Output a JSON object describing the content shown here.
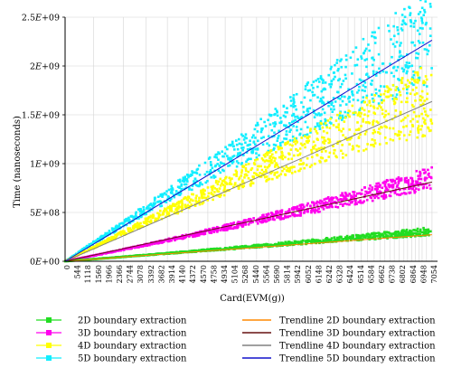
{
  "chart_data": {
    "type": "scatter",
    "title": "",
    "xlabel": "Card(EVM(g))",
    "ylabel": "Time (nanoseconds)",
    "xlim": [
      0,
      7160
    ],
    "ylim": [
      0,
      2500000000
    ],
    "y_ticks": [
      0,
      500000000,
      1000000000,
      1500000000,
      2000000000,
      2500000000
    ],
    "y_tick_labels": [
      "0E+00",
      "5E+08",
      "1E+09",
      "1.5E+09",
      "2E+09",
      "2.5E+09"
    ],
    "x_ticks": [
      0,
      544,
      1118,
      1560,
      1966,
      2366,
      2744,
      3078,
      3392,
      3682,
      3914,
      4140,
      4372,
      4570,
      4758,
      4934,
      5104,
      5268,
      5440,
      5564,
      5690,
      5814,
      5942,
      6052,
      6148,
      6242,
      6328,
      6424,
      6514,
      6584,
      6662,
      6738,
      6802,
      6864,
      6948,
      7054
    ],
    "grid": true,
    "legend_position": "bottom",
    "series": [
      {
        "name": "2D boundary extraction",
        "kind": "scatter",
        "color": "#22dd22",
        "approx_slope": 42000,
        "approx_curve": 0.08
      },
      {
        "name": "3D boundary extraction",
        "kind": "scatter",
        "color": "#ff00ee",
        "approx_slope": 113000,
        "approx_curve": 0.15
      },
      {
        "name": "4D boundary extraction",
        "kind": "scatter",
        "color": "#ffff00",
        "approx_slope": 250000,
        "approx_curve": -0.1
      },
      {
        "name": "5D boundary extraction",
        "kind": "scatter",
        "color": "#11eeff",
        "approx_slope": 338000,
        "approx_curve": -0.05
      },
      {
        "name": "Trendline 2D boundary extraction",
        "kind": "trendline",
        "color": "#ff8800",
        "slope": 38500
      },
      {
        "name": "Trendline 3D boundary extraction",
        "kind": "trendline",
        "color": "#661111",
        "slope": 115000
      },
      {
        "name": "Trendline 4D boundary extraction",
        "kind": "trendline",
        "color": "#808080",
        "slope": 232000
      },
      {
        "name": "Trendline 5D boundary extraction",
        "kind": "trendline",
        "color": "#1111cc",
        "slope": 321000
      }
    ]
  }
}
